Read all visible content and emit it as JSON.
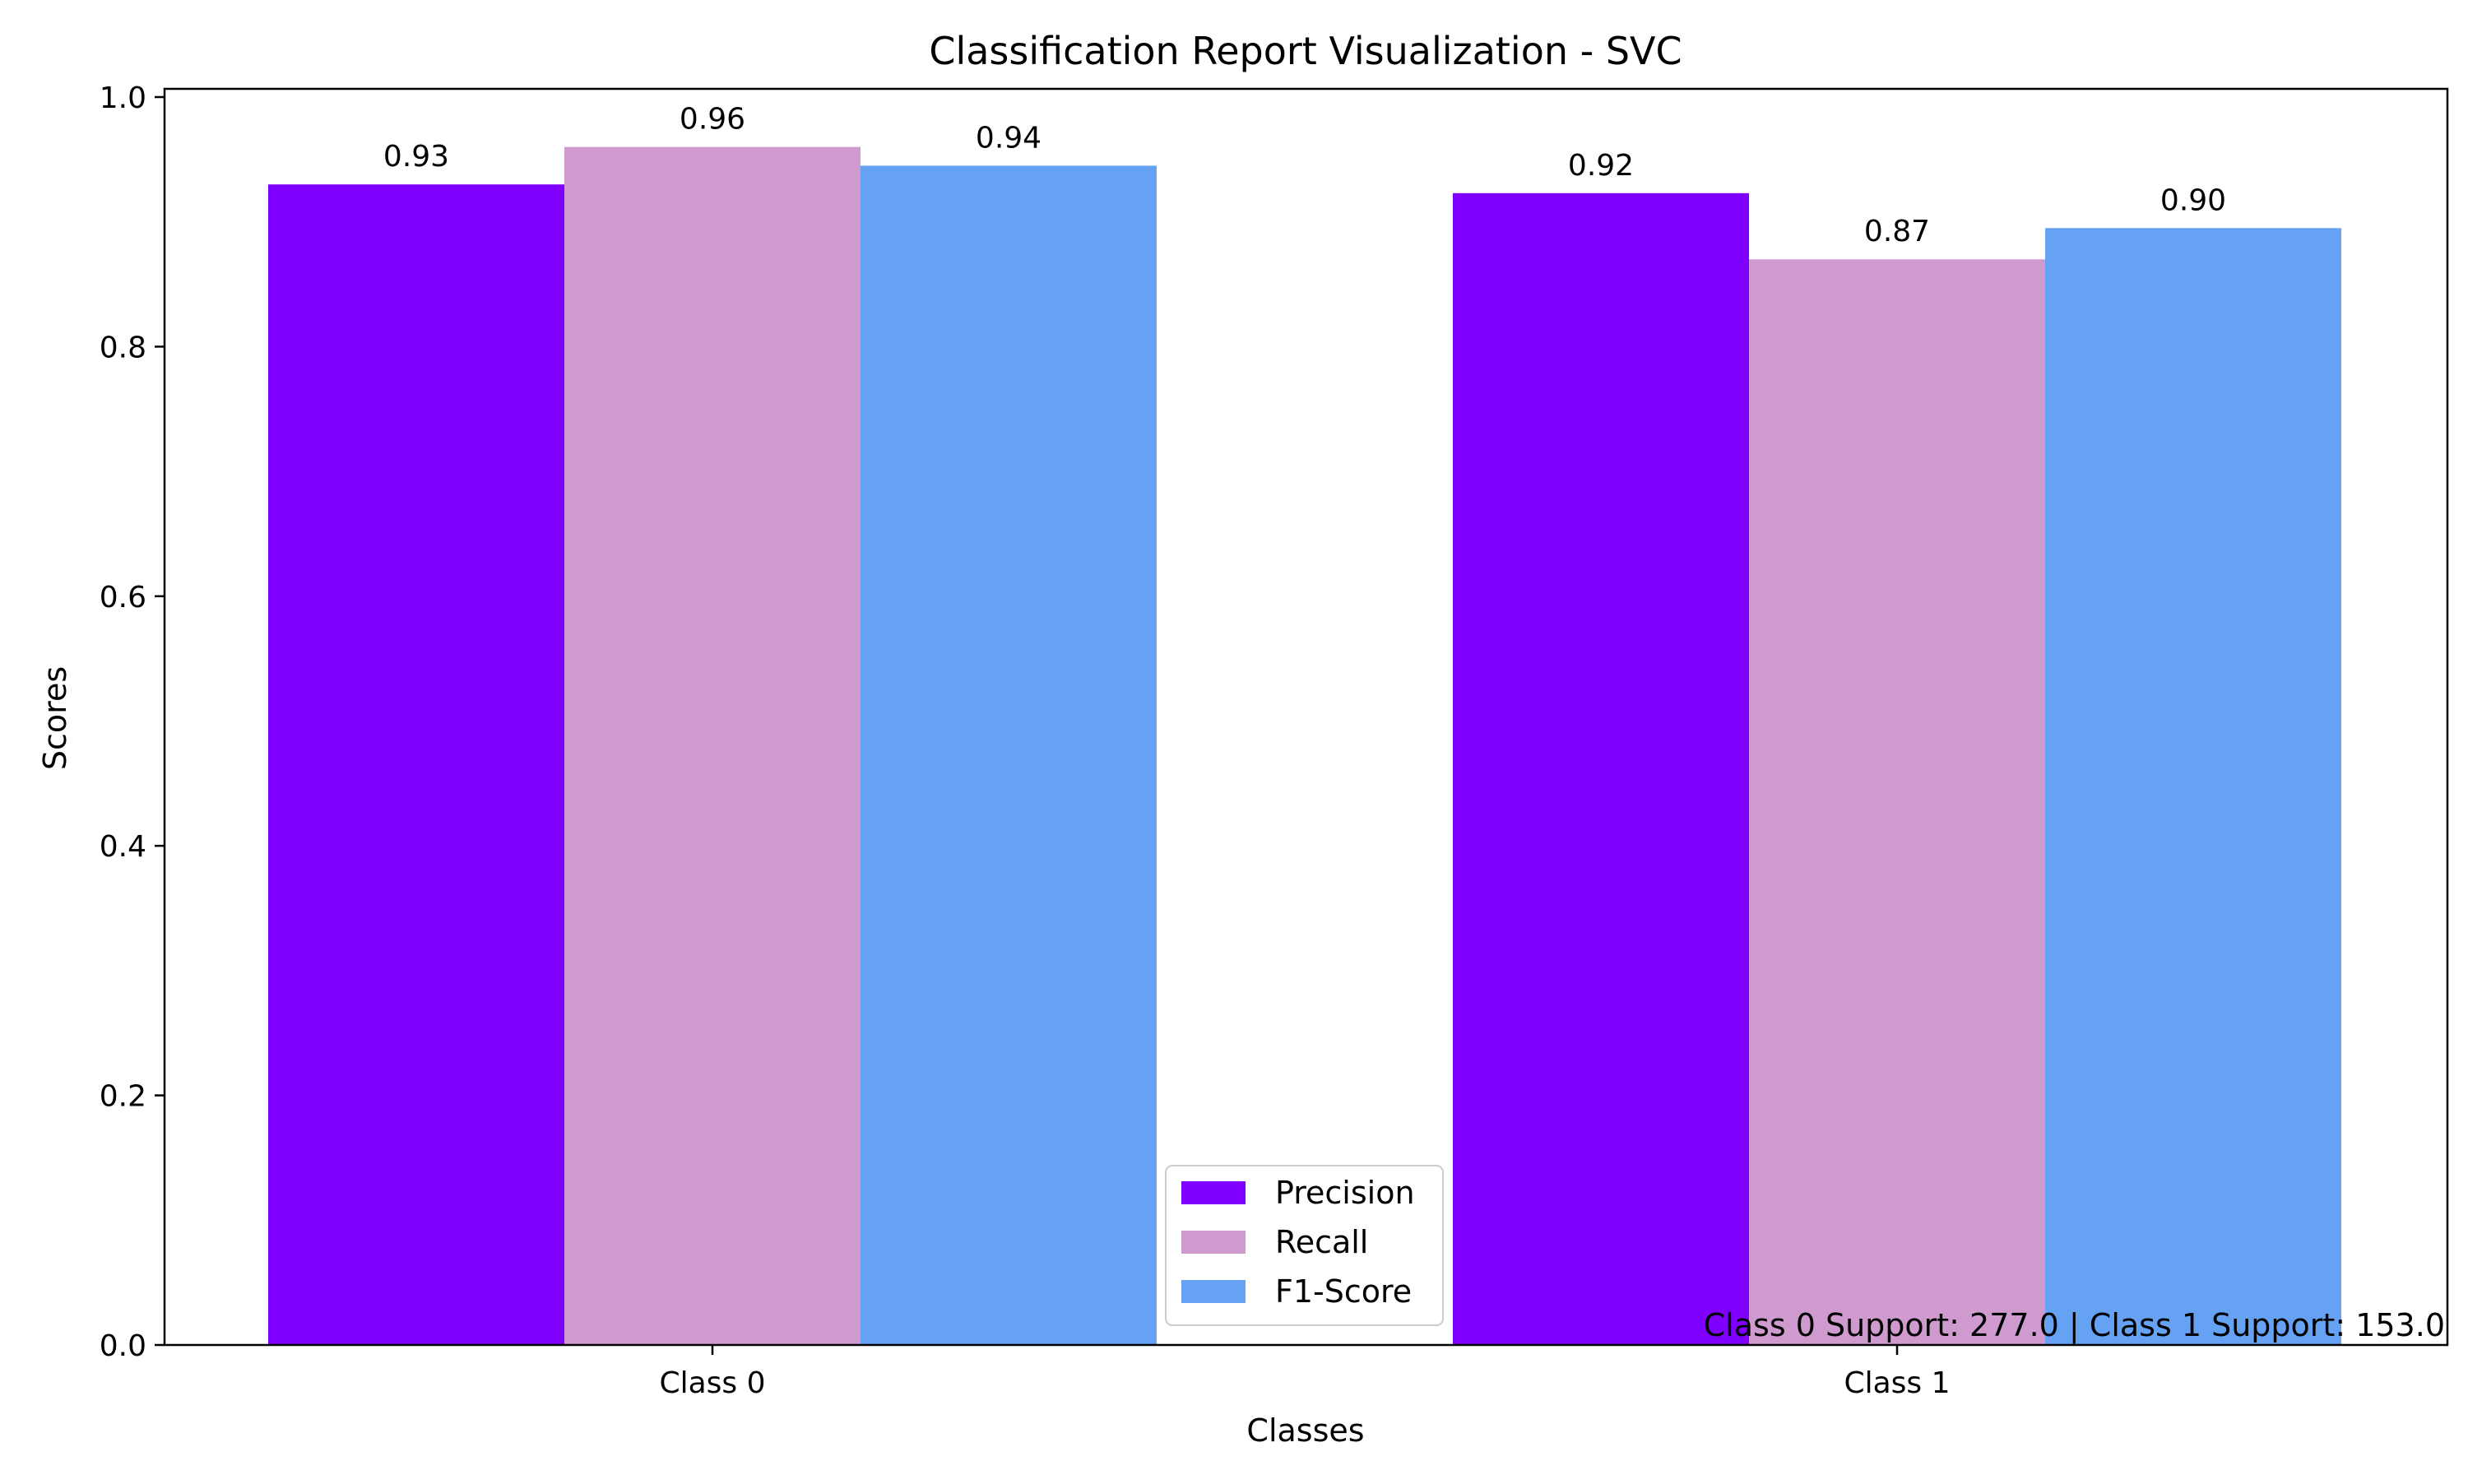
{
  "chart_data": {
    "type": "bar",
    "title": "Classification Report Visualization - SVC",
    "xlabel": "Classes",
    "ylabel": "Scores",
    "categories": [
      "Class 0",
      "Class 1"
    ],
    "series": [
      {
        "name": "Precision",
        "color": "#7f00ff",
        "values": [
          0.93,
          0.923
        ],
        "labels": [
          "0.93",
          "0.92"
        ]
      },
      {
        "name": "Recall",
        "color": "#cf9bcf",
        "values": [
          0.96,
          0.87
        ],
        "labels": [
          "0.96",
          "0.87"
        ]
      },
      {
        "name": "F1-Score",
        "color": "#66a2f4",
        "values": [
          0.945,
          0.895
        ],
        "labels": [
          "0.94",
          "0.90"
        ]
      }
    ],
    "ylim": [
      0,
      1.0
    ],
    "yticks": [
      0.0,
      0.2,
      0.4,
      0.6,
      0.8,
      1.0
    ],
    "ytick_labels": [
      "0.0",
      "0.2",
      "0.4",
      "0.6",
      "0.8",
      "1.0"
    ],
    "grid": false,
    "legend_position": "lower center",
    "annotation": "Class 0 Support: 277.0 | Class 1 Support: 153.0"
  }
}
